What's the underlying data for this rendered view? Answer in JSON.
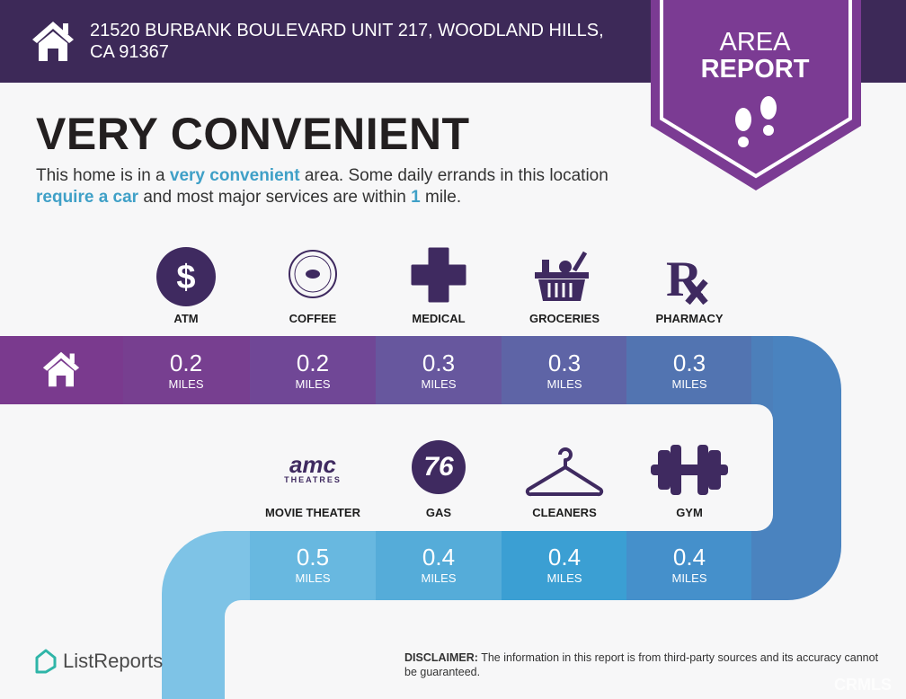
{
  "header": {
    "address_line1": "21520 BURBANK BOULEVARD UNIT 217, WOODLAND HILLS,",
    "address_line2": "CA 91367",
    "home_icon": "house-icon"
  },
  "banner": {
    "line1": "AREA",
    "line2": "REPORT",
    "icon": "footprints-icon",
    "color": "#7b3b93"
  },
  "headline": "VERY CONVENIENT",
  "description": {
    "p1": "This home is in a ",
    "h1": "very convenient",
    "p2": " area. Some daily errands in this location ",
    "h2": "require a car",
    "p3": " and most major services are within ",
    "h3": "1",
    "p4": " mile."
  },
  "unit": "MILES",
  "top_row": [
    {
      "label": "ATM",
      "distance": "0.2",
      "icon": "dollar-icon"
    },
    {
      "label": "COFFEE",
      "distance": "0.2",
      "icon": "coffee-bean-logo-icon"
    },
    {
      "label": "MEDICAL",
      "distance": "0.3",
      "icon": "medical-cross-icon"
    },
    {
      "label": "GROCERIES",
      "distance": "0.3",
      "icon": "grocery-basket-icon"
    },
    {
      "label": "PHARMACY",
      "distance": "0.3",
      "icon": "rx-icon"
    }
  ],
  "bottom_row": [
    {
      "label": "MOVIE THEATER",
      "distance": "0.5",
      "icon": "amc-theatres-logo-icon",
      "logo_text": "amc",
      "logo_sub": "THEATRES"
    },
    {
      "label": "GAS",
      "distance": "0.4",
      "icon": "76-logo-icon",
      "logo_text": "76"
    },
    {
      "label": "CLEANERS",
      "distance": "0.4",
      "icon": "hanger-icon"
    },
    {
      "label": "GYM",
      "distance": "0.4",
      "icon": "dumbbell-icon"
    }
  ],
  "footer": {
    "brand": "ListReports",
    "disclaimer_label": "DISCLAIMER:",
    "disclaimer_text": " The information in this report is from third-party sources and its accuracy cannot be guaranteed.",
    "watermark": "CRMLS"
  },
  "colors": {
    "header": "#3d2958",
    "icon_purple": "#3f2a60",
    "highlight": "#3fa0c7"
  }
}
